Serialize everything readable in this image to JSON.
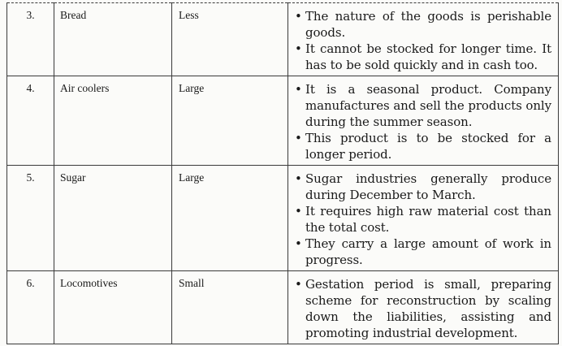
{
  "rows": [
    {
      "no": "3.",
      "industry": "Bread",
      "working_capital": "Less",
      "reasons": [
        "The nature of the goods is perishable goods.",
        "It cannot be stocked for longer time. It has to be sold quickly and in cash too."
      ]
    },
    {
      "no": "4.",
      "industry": "Air coolers",
      "working_capital": "Large",
      "reasons": [
        "It is a seasonal product. Company manufactures and sell the products only during the summer season.",
        "This product is to be stocked for a longer period."
      ]
    },
    {
      "no": "5.",
      "industry": "Sugar",
      "working_capital": "Large",
      "reasons": [
        "Sugar industries generally produce during December to March.",
        "It requires high raw material cost than the total cost.",
        "They carry a large amount of work in progress."
      ]
    },
    {
      "no": "6.",
      "industry": "Locomotives",
      "working_capital": "Small",
      "reasons": [
        "Gestation period is small, preparing scheme for reconstruction by scaling down the liabilities, assisting and promoting industrial development."
      ]
    }
  ]
}
